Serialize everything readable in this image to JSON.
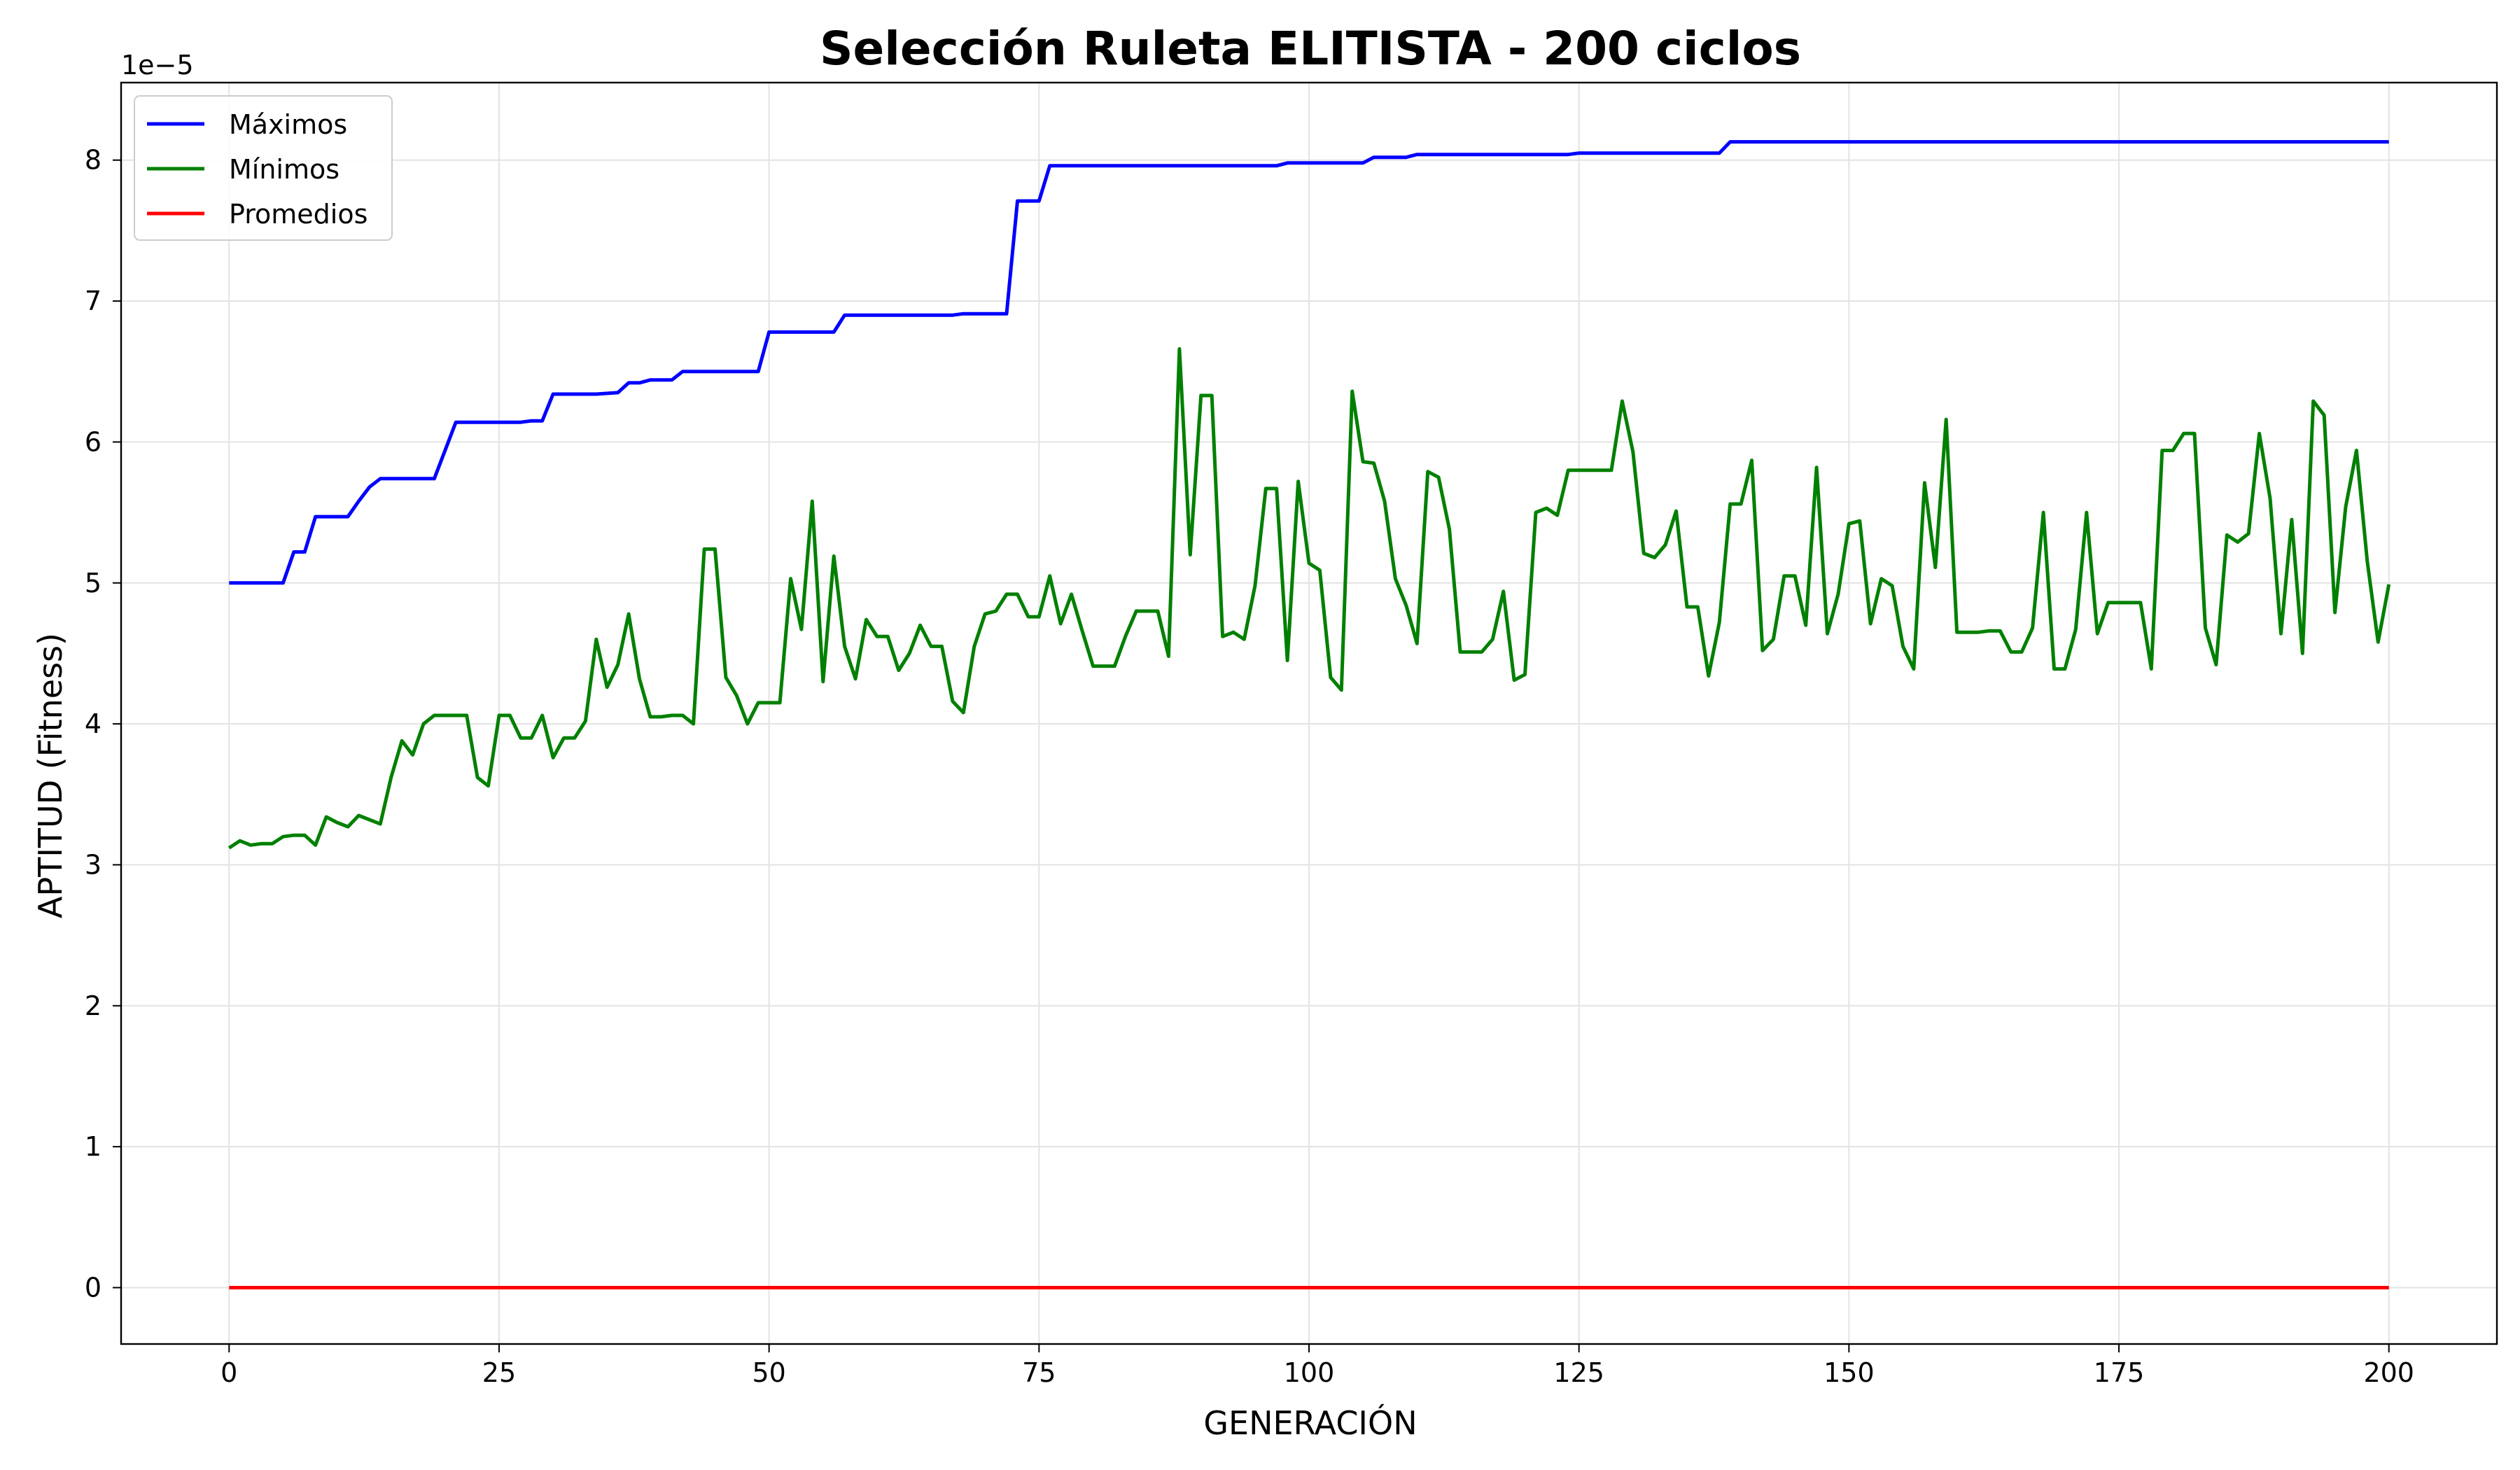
{
  "chart_data": {
    "type": "line",
    "title": "Selección Ruleta ELITISTA - 200 ciclos",
    "xlabel": "GENERACIÓN",
    "ylabel": "APTITUD (Fitness)",
    "y_offset_label": "1e−5",
    "xlim": [
      -10,
      210
    ],
    "ylim": [
      -0.4,
      8.55
    ],
    "y_scale_note": "values in units of 1e-5",
    "xticks": [
      0,
      25,
      50,
      75,
      100,
      125,
      150,
      175,
      200
    ],
    "yticks": [
      0,
      1,
      2,
      3,
      4,
      5,
      6,
      7,
      8
    ],
    "grid": true,
    "legend_position": "upper-left",
    "series": [
      {
        "name": "Máximos",
        "color": "#0000ff",
        "points": [
          [
            0,
            5.0
          ],
          [
            5,
            5.0
          ],
          [
            6,
            5.22
          ],
          [
            7,
            5.22
          ],
          [
            8,
            5.47
          ],
          [
            11,
            5.47
          ],
          [
            12,
            5.58
          ],
          [
            13,
            5.68
          ],
          [
            14,
            5.74
          ],
          [
            19,
            5.74
          ],
          [
            21,
            6.14
          ],
          [
            27,
            6.14
          ],
          [
            28,
            6.15
          ],
          [
            29,
            6.15
          ],
          [
            30,
            6.34
          ],
          [
            34,
            6.34
          ],
          [
            36,
            6.35
          ],
          [
            37,
            6.42
          ],
          [
            38,
            6.42
          ],
          [
            39,
            6.44
          ],
          [
            41,
            6.44
          ],
          [
            42,
            6.5
          ],
          [
            49,
            6.5
          ],
          [
            50,
            6.78
          ],
          [
            56,
            6.78
          ],
          [
            57,
            6.9
          ],
          [
            67,
            6.9
          ],
          [
            68,
            6.91
          ],
          [
            72,
            6.91
          ],
          [
            73,
            7.71
          ],
          [
            75,
            7.71
          ],
          [
            76,
            7.96
          ],
          [
            97,
            7.96
          ],
          [
            98,
            7.98
          ],
          [
            105,
            7.98
          ],
          [
            106,
            8.02
          ],
          [
            109,
            8.02
          ],
          [
            110,
            8.04
          ],
          [
            124,
            8.04
          ],
          [
            125,
            8.05
          ],
          [
            138,
            8.05
          ],
          [
            139,
            8.13
          ],
          [
            200,
            8.13
          ]
        ]
      },
      {
        "name": "Mínimos",
        "color": "#008000",
        "points": [
          [
            0,
            3.12
          ],
          [
            1,
            3.17
          ],
          [
            2,
            3.14
          ],
          [
            3,
            3.15
          ],
          [
            4,
            3.15
          ],
          [
            5,
            3.2
          ],
          [
            6,
            3.21
          ],
          [
            7,
            3.21
          ],
          [
            8,
            3.14
          ],
          [
            9,
            3.34
          ],
          [
            10,
            3.3
          ],
          [
            11,
            3.27
          ],
          [
            12,
            3.35
          ],
          [
            13,
            3.32
          ],
          [
            14,
            3.29
          ],
          [
            15,
            3.62
          ],
          [
            16,
            3.88
          ],
          [
            17,
            3.78
          ],
          [
            18,
            4.0
          ],
          [
            19,
            4.06
          ],
          [
            20,
            4.06
          ],
          [
            21,
            4.06
          ],
          [
            22,
            4.06
          ],
          [
            23,
            3.62
          ],
          [
            24,
            3.56
          ],
          [
            25,
            4.06
          ],
          [
            26,
            4.06
          ],
          [
            27,
            3.9
          ],
          [
            28,
            3.9
          ],
          [
            29,
            4.06
          ],
          [
            30,
            3.76
          ],
          [
            31,
            3.9
          ],
          [
            32,
            3.9
          ],
          [
            33,
            4.02
          ],
          [
            34,
            4.6
          ],
          [
            35,
            4.26
          ],
          [
            36,
            4.42
          ],
          [
            37,
            4.78
          ],
          [
            38,
            4.32
          ],
          [
            39,
            4.05
          ],
          [
            40,
            4.05
          ],
          [
            41,
            4.06
          ],
          [
            42,
            4.06
          ],
          [
            43,
            4.0
          ],
          [
            44,
            5.24
          ],
          [
            45,
            5.24
          ],
          [
            46,
            4.33
          ],
          [
            47,
            4.2
          ],
          [
            48,
            4.0
          ],
          [
            49,
            4.15
          ],
          [
            50,
            4.15
          ],
          [
            51,
            4.15
          ],
          [
            52,
            5.03
          ],
          [
            53,
            4.67
          ],
          [
            54,
            5.58
          ],
          [
            55,
            4.3
          ],
          [
            56,
            5.19
          ],
          [
            57,
            4.55
          ],
          [
            58,
            4.32
          ],
          [
            59,
            4.74
          ],
          [
            60,
            4.62
          ],
          [
            61,
            4.62
          ],
          [
            62,
            4.38
          ],
          [
            63,
            4.5
          ],
          [
            64,
            4.7
          ],
          [
            65,
            4.55
          ],
          [
            66,
            4.55
          ],
          [
            67,
            4.16
          ],
          [
            68,
            4.08
          ],
          [
            69,
            4.55
          ],
          [
            70,
            4.78
          ],
          [
            71,
            4.8
          ],
          [
            72,
            4.92
          ],
          [
            73,
            4.92
          ],
          [
            74,
            4.76
          ],
          [
            75,
            4.76
          ],
          [
            76,
            5.05
          ],
          [
            77,
            4.71
          ],
          [
            78,
            4.92
          ],
          [
            79,
            4.66
          ],
          [
            80,
            4.41
          ],
          [
            81,
            4.41
          ],
          [
            82,
            4.41
          ],
          [
            83,
            4.62
          ],
          [
            84,
            4.8
          ],
          [
            85,
            4.8
          ],
          [
            86,
            4.8
          ],
          [
            87,
            4.48
          ],
          [
            88,
            6.66
          ],
          [
            89,
            5.2
          ],
          [
            90,
            6.33
          ],
          [
            91,
            6.33
          ],
          [
            92,
            4.62
          ],
          [
            93,
            4.65
          ],
          [
            94,
            4.6
          ],
          [
            95,
            4.98
          ],
          [
            96,
            5.67
          ],
          [
            97,
            5.67
          ],
          [
            98,
            4.45
          ],
          [
            99,
            5.72
          ],
          [
            100,
            5.14
          ],
          [
            101,
            5.09
          ],
          [
            102,
            4.33
          ],
          [
            103,
            4.24
          ],
          [
            104,
            6.36
          ],
          [
            105,
            5.86
          ],
          [
            106,
            5.85
          ],
          [
            107,
            5.58
          ],
          [
            108,
            5.03
          ],
          [
            109,
            4.84
          ],
          [
            110,
            4.57
          ],
          [
            111,
            5.79
          ],
          [
            112,
            5.75
          ],
          [
            113,
            5.38
          ],
          [
            114,
            4.51
          ],
          [
            115,
            4.51
          ],
          [
            116,
            4.51
          ],
          [
            117,
            4.6
          ],
          [
            118,
            4.94
          ],
          [
            119,
            4.31
          ],
          [
            120,
            4.35
          ],
          [
            121,
            5.5
          ],
          [
            122,
            5.53
          ],
          [
            123,
            5.48
          ],
          [
            124,
            5.8
          ],
          [
            125,
            5.8
          ],
          [
            126,
            5.8
          ],
          [
            127,
            5.8
          ],
          [
            128,
            5.8
          ],
          [
            129,
            6.29
          ],
          [
            130,
            5.93
          ],
          [
            131,
            5.21
          ],
          [
            132,
            5.18
          ],
          [
            133,
            5.27
          ],
          [
            134,
            5.51
          ],
          [
            135,
            4.83
          ],
          [
            136,
            4.83
          ],
          [
            137,
            4.34
          ],
          [
            138,
            4.72
          ],
          [
            139,
            5.56
          ],
          [
            140,
            5.56
          ],
          [
            141,
            5.87
          ],
          [
            142,
            4.52
          ],
          [
            143,
            4.6
          ],
          [
            144,
            5.05
          ],
          [
            145,
            5.05
          ],
          [
            146,
            4.7
          ],
          [
            147,
            5.82
          ],
          [
            148,
            4.64
          ],
          [
            149,
            4.92
          ],
          [
            150,
            5.42
          ],
          [
            151,
            5.44
          ],
          [
            152,
            4.71
          ],
          [
            153,
            5.03
          ],
          [
            154,
            4.98
          ],
          [
            155,
            4.55
          ],
          [
            156,
            4.39
          ],
          [
            157,
            5.71
          ],
          [
            158,
            5.11
          ],
          [
            159,
            6.16
          ],
          [
            160,
            4.65
          ],
          [
            161,
            4.65
          ],
          [
            162,
            4.65
          ],
          [
            163,
            4.66
          ],
          [
            164,
            4.66
          ],
          [
            165,
            4.51
          ],
          [
            166,
            4.51
          ],
          [
            167,
            4.68
          ],
          [
            168,
            5.5
          ],
          [
            169,
            4.39
          ],
          [
            170,
            4.39
          ],
          [
            171,
            4.67
          ],
          [
            172,
            5.5
          ],
          [
            173,
            4.64
          ],
          [
            174,
            4.86
          ],
          [
            175,
            4.86
          ],
          [
            176,
            4.86
          ],
          [
            177,
            4.86
          ],
          [
            178,
            4.39
          ],
          [
            179,
            5.94
          ],
          [
            180,
            5.94
          ],
          [
            181,
            6.06
          ],
          [
            182,
            6.06
          ],
          [
            183,
            4.68
          ],
          [
            184,
            4.42
          ],
          [
            185,
            5.34
          ],
          [
            186,
            5.29
          ],
          [
            187,
            5.35
          ],
          [
            188,
            6.06
          ],
          [
            189,
            5.6
          ],
          [
            190,
            4.64
          ],
          [
            191,
            5.45
          ],
          [
            192,
            4.5
          ],
          [
            193,
            6.29
          ],
          [
            194,
            6.19
          ],
          [
            195,
            4.79
          ],
          [
            196,
            5.54
          ],
          [
            197,
            5.94
          ],
          [
            198,
            5.15
          ],
          [
            199,
            4.58
          ],
          [
            200,
            4.99
          ]
        ]
      },
      {
        "name": "Promedios",
        "color": "#ff0000",
        "points": [
          [
            0,
            0.0
          ],
          [
            200,
            0.0
          ]
        ]
      }
    ]
  }
}
